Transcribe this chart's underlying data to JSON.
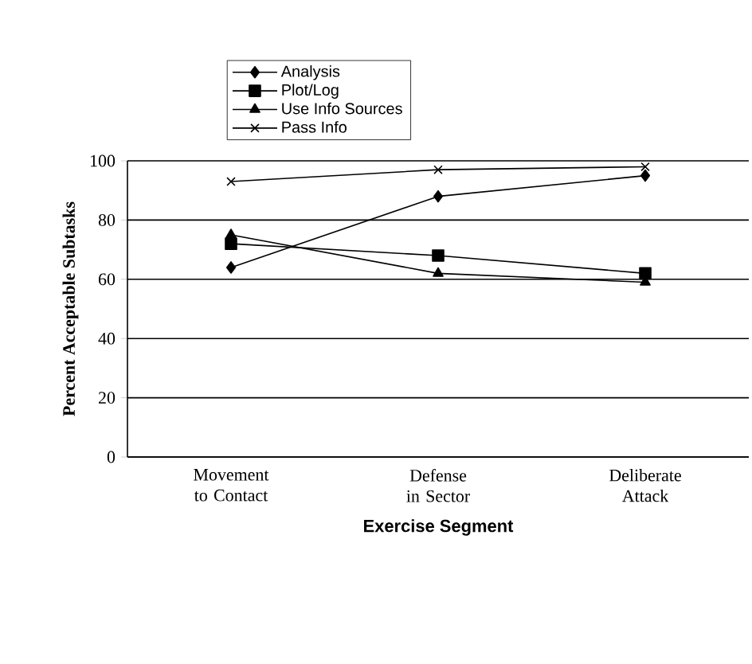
{
  "chart_data": {
    "type": "line",
    "xlabel": "Exercise Segment",
    "ylabel": "Percent Acceptable Subtasks",
    "categories": [
      "Movement to Contact",
      "Defense in Sector",
      "Deliberate Attack"
    ],
    "series": [
      {
        "name": "Analysis",
        "color": "#000000",
        "marker": "diamond",
        "values": [
          64,
          88,
          95
        ]
      },
      {
        "name": "Plot/Log",
        "color": "#000000",
        "marker": "square",
        "values": [
          72,
          68,
          62
        ]
      },
      {
        "name": "Use Info Sources",
        "color": "#000000",
        "marker": "triangle",
        "values": [
          75,
          62,
          59
        ]
      },
      {
        "name": "Pass Info",
        "color": "#000000",
        "marker": "cross",
        "values": [
          93,
          97,
          98
        ]
      }
    ],
    "ylim": [
      0,
      100
    ],
    "yticks": [
      0,
      20,
      40,
      60,
      80,
      100
    ],
    "grid": "y",
    "legend": "top",
    "line_style": "solid"
  }
}
